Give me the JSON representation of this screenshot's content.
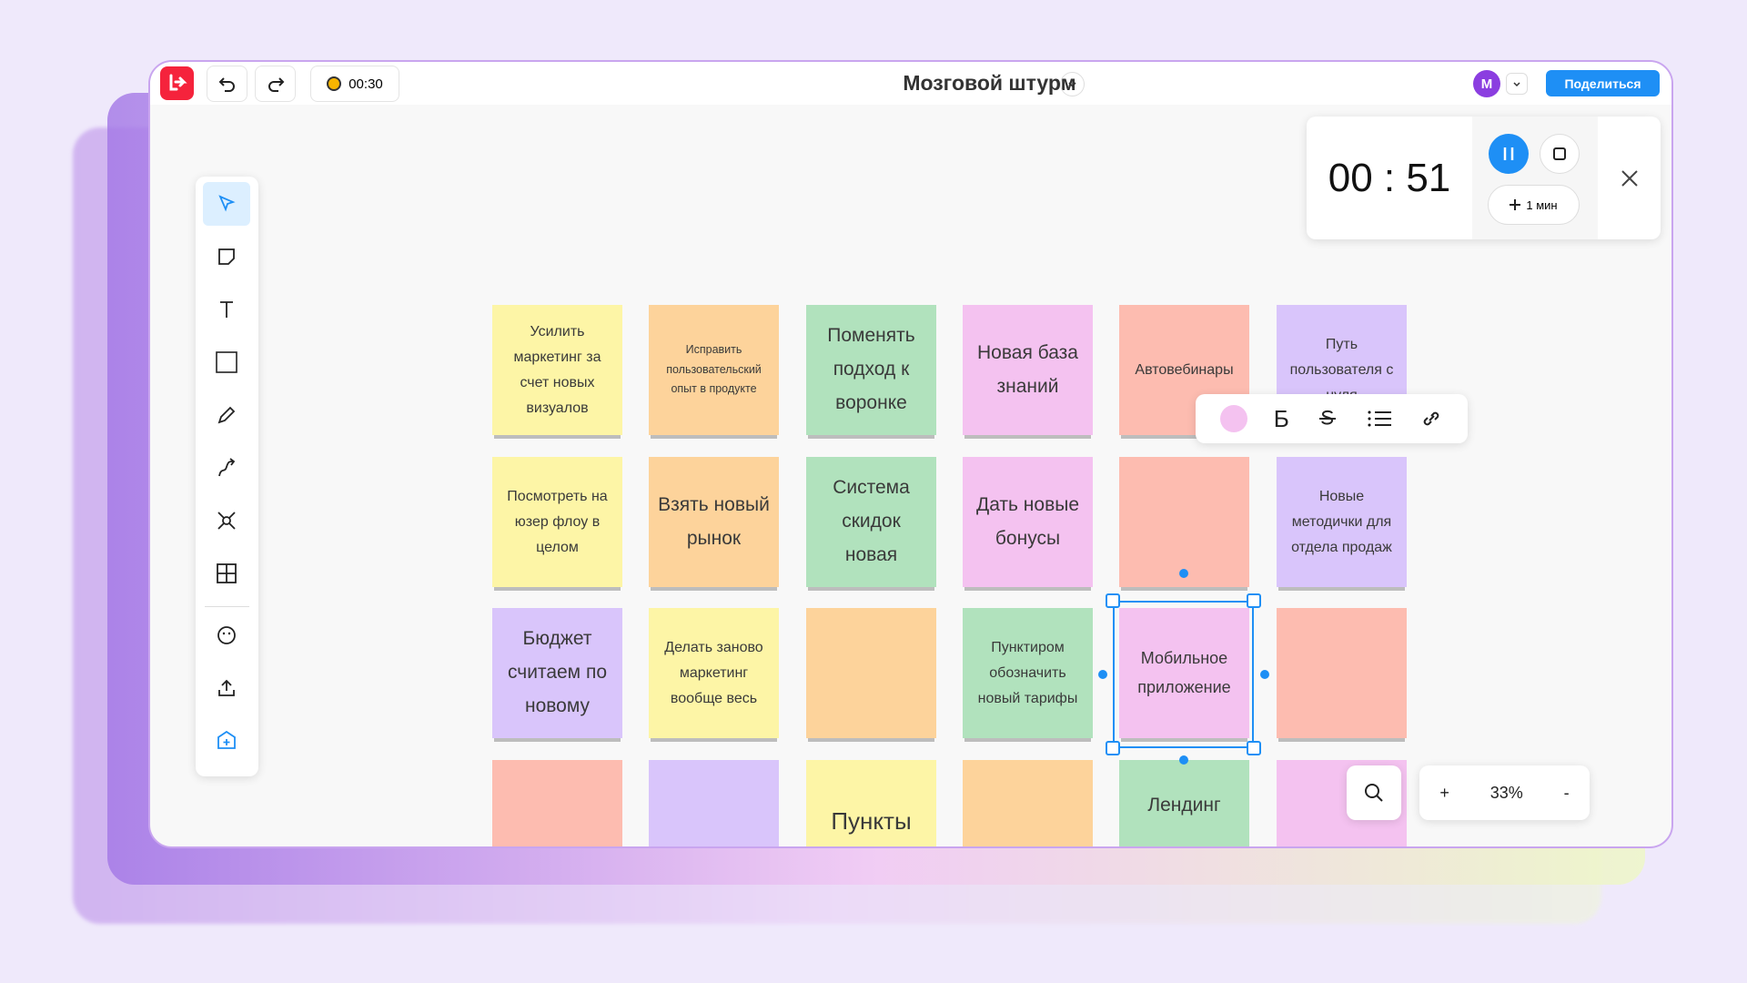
{
  "header": {
    "timer": "00:30",
    "title": "Мозговой штурм",
    "avatar": "М",
    "share": "Поделиться"
  },
  "timer_panel": {
    "time": "00 : 51",
    "add": "1 мин"
  },
  "format_toolbar": {
    "bold": "Б"
  },
  "zoom": {
    "plus": "+",
    "level": "33%",
    "minus": "-"
  },
  "notes": [
    [
      {
        "text": "Усилить маркетинг за счет новых визуалов",
        "color": "#fdf5a6"
      },
      {
        "text": "Исправить пользовательский опыт в продукте",
        "color": "#fdd39b"
      },
      {
        "text": "Поменять подход к воронке",
        "color": "#b1e2bd"
      },
      {
        "text": "Новая база знаний",
        "color": "#f4c2f0"
      },
      {
        "text": "Автовебинары",
        "color": "#fdbcb0"
      },
      {
        "text": "Путь пользователя с нуля",
        "color": "#d9c5fb"
      }
    ],
    [
      {
        "text": "Посмотреть на юзер флоу в целом",
        "color": "#fdf5a6"
      },
      {
        "text": "Взять новый рынок",
        "color": "#fdd39b"
      },
      {
        "text": "Система скидок новая",
        "color": "#b1e2bd"
      },
      {
        "text": "Дать новые бонусы",
        "color": "#f4c2f0"
      },
      {
        "color": "#fdbcb0"
      },
      {
        "text": "Новые методички для отдела продаж",
        "color": "#d9c5fb"
      }
    ],
    [
      {
        "text": "Бюджет считаем по новому",
        "color": "#d9c5fb"
      },
      {
        "text": "Делать заново маркетинг вообще весь",
        "color": "#fdf5a6"
      },
      {
        "color": "#fdd39b"
      },
      {
        "text": "Пунктиром обозначить новый тарифы",
        "color": "#b1e2bd"
      },
      {
        "text": "Мобильное приложение",
        "color": "#f4c2f0"
      },
      {
        "color": "#fdbcb0"
      }
    ],
    [
      {
        "color": "#fdbcb0"
      },
      {
        "color": "#d9c5fb"
      },
      {
        "text": "Пункты",
        "color": "#fdf5a6"
      },
      {
        "color": "#fdd39b"
      },
      {
        "text": "Лендинг",
        "color": "#b1e2bd"
      },
      {
        "color": "#f4c2f0"
      }
    ]
  ]
}
